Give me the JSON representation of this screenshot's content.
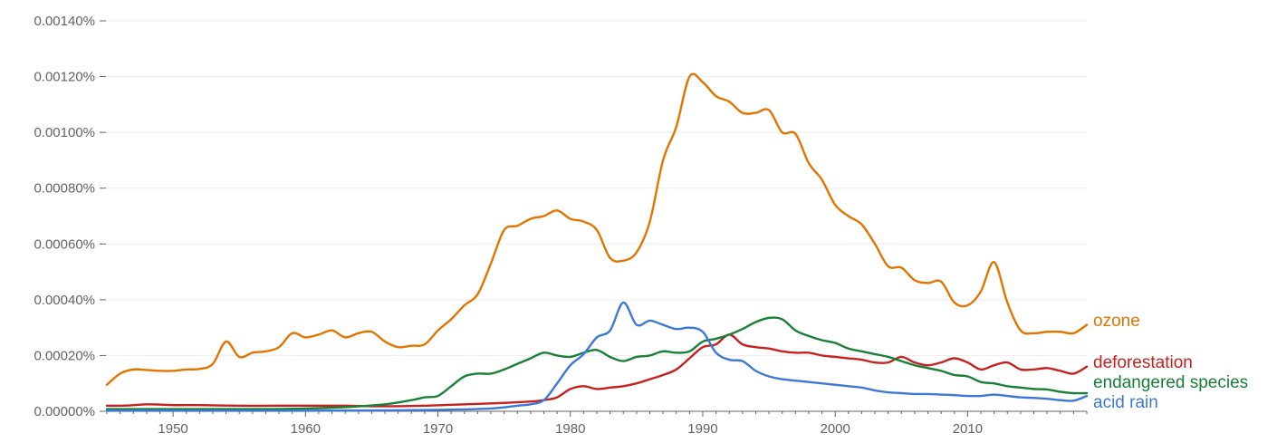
{
  "chart_data": {
    "type": "line",
    "title": "",
    "xlabel": "",
    "ylabel": "",
    "xlim": [
      1945,
      2019
    ],
    "ylim": [
      0,
      0.0014
    ],
    "y_unit": "%",
    "grid": true,
    "legend": "right-end-labels",
    "x_ticks": [
      1950,
      1960,
      1970,
      1980,
      1990,
      2000,
      2010
    ],
    "y_ticks": [
      {
        "value": 0,
        "label": "0.00000%"
      },
      {
        "value": 0.0002,
        "label": "0.00020%"
      },
      {
        "value": 0.0004,
        "label": "0.00040%"
      },
      {
        "value": 0.0006,
        "label": "0.00060%"
      },
      {
        "value": 0.0008,
        "label": "0.00080%"
      },
      {
        "value": 0.001,
        "label": "0.00100%"
      },
      {
        "value": 0.0012,
        "label": "0.00120%"
      },
      {
        "value": 0.0014,
        "label": "0.00140%"
      }
    ],
    "series": [
      {
        "name": "ozone",
        "color": "#e37400",
        "x": [
          1945,
          1946,
          1947,
          1948,
          1949,
          1950,
          1951,
          1952,
          1953,
          1954,
          1955,
          1956,
          1957,
          1958,
          1959,
          1960,
          1961,
          1962,
          1963,
          1964,
          1965,
          1966,
          1967,
          1968,
          1969,
          1970,
          1971,
          1972,
          1973,
          1974,
          1975,
          1976,
          1977,
          1978,
          1979,
          1980,
          1981,
          1982,
          1983,
          1984,
          1985,
          1986,
          1987,
          1988,
          1989,
          1990,
          1991,
          1992,
          1993,
          1994,
          1995,
          1996,
          1997,
          1998,
          1999,
          2000,
          2001,
          2002,
          2003,
          2004,
          2005,
          2006,
          2007,
          2008,
          2009,
          2010,
          2011,
          2012,
          2013,
          2014,
          2015,
          2016,
          2017,
          2018,
          2019
        ],
        "values": [
          9.5e-05,
          0.000135,
          0.00015,
          0.000148,
          0.000145,
          0.000145,
          0.00015,
          0.000152,
          0.00017,
          0.00025,
          0.000195,
          0.00021,
          0.000215,
          0.00023,
          0.00028,
          0.000265,
          0.000275,
          0.00029,
          0.000265,
          0.00028,
          0.000285,
          0.00025,
          0.00023,
          0.000235,
          0.00024,
          0.00029,
          0.00033,
          0.00038,
          0.00042,
          0.00053,
          0.00065,
          0.000665,
          0.00069,
          0.0007,
          0.00072,
          0.00069,
          0.00068,
          0.00065,
          0.00055,
          0.00054,
          0.00057,
          0.00068,
          0.0009,
          0.00102,
          0.0012,
          0.00118,
          0.00113,
          0.00111,
          0.00107,
          0.00107,
          0.00108,
          0.001,
          0.000995,
          0.00089,
          0.00083,
          0.00074,
          0.0007,
          0.00067,
          0.0006,
          0.00052,
          0.000515,
          0.00047,
          0.00046,
          0.000465,
          0.00039,
          0.00038,
          0.00043,
          0.000535,
          0.00039,
          0.00029,
          0.00028,
          0.000285,
          0.000285,
          0.00028,
          0.00031
        ]
      },
      {
        "name": "deforestation",
        "color": "#c5221f",
        "x": [
          1945,
          1946,
          1947,
          1948,
          1949,
          1950,
          1952,
          1955,
          1958,
          1960,
          1963,
          1966,
          1969,
          1972,
          1975,
          1977,
          1978,
          1979,
          1980,
          1981,
          1982,
          1983,
          1984,
          1985,
          1986,
          1987,
          1988,
          1989,
          1990,
          1991,
          1992,
          1993,
          1994,
          1995,
          1996,
          1997,
          1998,
          1999,
          2000,
          2001,
          2002,
          2003,
          2004,
          2005,
          2006,
          2007,
          2008,
          2009,
          2010,
          2011,
          2012,
          2013,
          2014,
          2015,
          2016,
          2017,
          2018,
          2019
        ],
        "values": [
          2e-05,
          2e-05,
          2.2e-05,
          2.5e-05,
          2.4e-05,
          2.2e-05,
          2.2e-05,
          2e-05,
          2e-05,
          2e-05,
          2e-05,
          1.8e-05,
          2e-05,
          2.5e-05,
          3e-05,
          3.5e-05,
          4e-05,
          5e-05,
          8e-05,
          9e-05,
          8e-05,
          8.5e-05,
          9e-05,
          0.0001,
          0.000115,
          0.00013,
          0.00015,
          0.00019,
          0.00023,
          0.00024,
          0.000275,
          0.00024,
          0.00023,
          0.000225,
          0.000215,
          0.00021,
          0.00021,
          0.0002,
          0.000195,
          0.00019,
          0.000185,
          0.000175,
          0.000175,
          0.000195,
          0.000175,
          0.000165,
          0.000175,
          0.00019,
          0.000175,
          0.00015,
          0.000165,
          0.000175,
          0.00015,
          0.00015,
          0.000155,
          0.000145,
          0.000135,
          0.00016
        ]
      },
      {
        "name": "endangered species",
        "color": "#188038",
        "x": [
          1945,
          1948,
          1951,
          1954,
          1957,
          1960,
          1963,
          1966,
          1968,
          1969,
          1970,
          1971,
          1972,
          1973,
          1974,
          1975,
          1976,
          1977,
          1978,
          1979,
          1980,
          1981,
          1982,
          1983,
          1984,
          1985,
          1986,
          1987,
          1988,
          1989,
          1990,
          1991,
          1992,
          1993,
          1994,
          1995,
          1996,
          1997,
          1998,
          1999,
          2000,
          2001,
          2002,
          2003,
          2004,
          2005,
          2006,
          2007,
          2008,
          2009,
          2010,
          2011,
          2012,
          2013,
          2014,
          2015,
          2016,
          2017,
          2018,
          2019
        ],
        "values": [
          8e-06,
          8e-06,
          8e-06,
          8e-06,
          8e-06,
          1e-05,
          1.5e-05,
          2.5e-05,
          4e-05,
          5e-05,
          5.5e-05,
          9e-05,
          0.000125,
          0.000135,
          0.000135,
          0.00015,
          0.00017,
          0.00019,
          0.00021,
          0.0002,
          0.000195,
          0.00021,
          0.00022,
          0.000195,
          0.00018,
          0.000195,
          0.0002,
          0.000215,
          0.00021,
          0.000215,
          0.00025,
          0.00026,
          0.000275,
          0.000295,
          0.00032,
          0.000335,
          0.00033,
          0.00029,
          0.00027,
          0.000255,
          0.000245,
          0.000225,
          0.000215,
          0.000205,
          0.000195,
          0.00018,
          0.000165,
          0.000155,
          0.000145,
          0.00013,
          0.000125,
          0.000105,
          0.0001,
          9e-05,
          8.5e-05,
          8e-05,
          7.8e-05,
          7e-05,
          6.5e-05,
          6.5e-05
        ]
      },
      {
        "name": "acid rain",
        "color": "#3c78d8",
        "x": [
          1945,
          1950,
          1955,
          1960,
          1965,
          1970,
          1974,
          1976,
          1977,
          1978,
          1979,
          1980,
          1981,
          1982,
          1983,
          1984,
          1985,
          1986,
          1987,
          1988,
          1989,
          1990,
          1991,
          1992,
          1993,
          1994,
          1995,
          1996,
          1997,
          1998,
          1999,
          2000,
          2001,
          2002,
          2003,
          2004,
          2005,
          2006,
          2007,
          2008,
          2009,
          2010,
          2011,
          2012,
          2013,
          2014,
          2015,
          2016,
          2017,
          2018,
          2019
        ],
        "values": [
          2e-06,
          2e-06,
          2e-06,
          2e-06,
          3e-06,
          5e-06,
          1e-05,
          2e-05,
          2.5e-05,
          4e-05,
          0.0001,
          0.000165,
          0.000205,
          0.000265,
          0.00029,
          0.00039,
          0.00031,
          0.000325,
          0.00031,
          0.000295,
          0.0003,
          0.000285,
          0.00021,
          0.000185,
          0.00018,
          0.000145,
          0.000125,
          0.000115,
          0.00011,
          0.000105,
          0.0001,
          9.5e-05,
          9e-05,
          8.5e-05,
          7.5e-05,
          6.8e-05,
          6.5e-05,
          6.2e-05,
          6.2e-05,
          6e-05,
          5.8e-05,
          5.5e-05,
          5.5e-05,
          6e-05,
          5.5e-05,
          5e-05,
          4.8e-05,
          4.5e-05,
          4e-05,
          3.8e-05,
          5.5e-05
        ]
      }
    ]
  }
}
